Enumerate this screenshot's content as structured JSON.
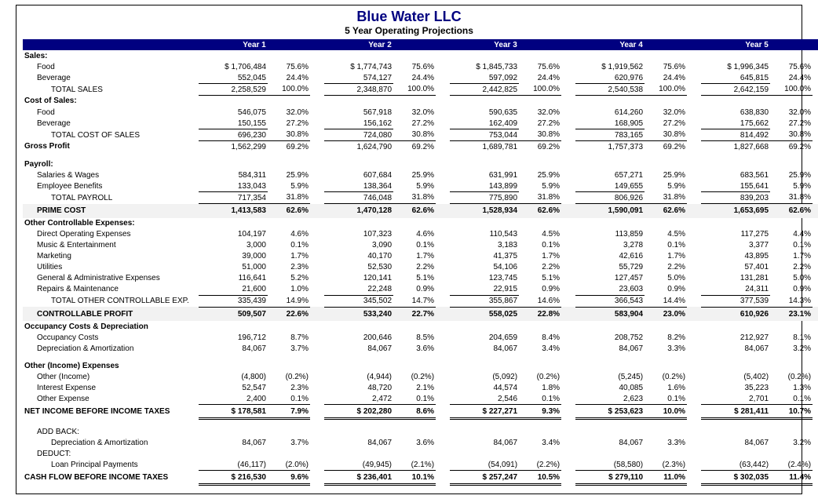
{
  "company": "Blue Water LLC",
  "report_title": "5 Year Operating Projections",
  "year_headers": [
    "Year 1",
    "Year 2",
    "Year 3",
    "Year 4",
    "Year 5"
  ],
  "colors": {
    "header_bg": "#000080",
    "header_fg": "#ffffff",
    "shade_bg": "#f2f2f2"
  },
  "rows": [
    {
      "type": "section",
      "label": "Sales:"
    },
    {
      "type": "line",
      "indent": 1,
      "label": "Food",
      "vals": [
        "$  1,706,484",
        "$  1,774,743",
        "$  1,845,733",
        "$  1,919,562",
        "$  1,996,345"
      ],
      "pcts": [
        "75.6%",
        "75.6%",
        "75.6%",
        "75.6%",
        "75.6%"
      ]
    },
    {
      "type": "line",
      "indent": 1,
      "label": "Beverage",
      "vals": [
        "552,045",
        "574,127",
        "597,092",
        "620,976",
        "645,815"
      ],
      "pcts": [
        "24.4%",
        "24.4%",
        "24.4%",
        "24.4%",
        "24.4%"
      ],
      "underline": "vals"
    },
    {
      "type": "line",
      "indent": 2,
      "label": "TOTAL SALES",
      "vals": [
        "2,258,529",
        "2,348,870",
        "2,442,825",
        "2,540,538",
        "2,642,159"
      ],
      "pcts": [
        "100.0%",
        "100.0%",
        "100.0%",
        "100.0%",
        "100.0%"
      ],
      "topline": true,
      "underline": "both"
    },
    {
      "type": "section",
      "label": "Cost of Sales:"
    },
    {
      "type": "line",
      "indent": 1,
      "label": "Food",
      "vals": [
        "546,075",
        "567,918",
        "590,635",
        "614,260",
        "638,830"
      ],
      "pcts": [
        "32.0%",
        "32.0%",
        "32.0%",
        "32.0%",
        "32.0%"
      ]
    },
    {
      "type": "line",
      "indent": 1,
      "label": "Beverage",
      "vals": [
        "150,155",
        "156,162",
        "162,409",
        "168,905",
        "175,662"
      ],
      "pcts": [
        "27.2%",
        "27.2%",
        "27.2%",
        "27.2%",
        "27.2%"
      ],
      "underline": "vals"
    },
    {
      "type": "line",
      "indent": 2,
      "label": "TOTAL COST OF SALES",
      "vals": [
        "696,230",
        "724,080",
        "753,044",
        "783,165",
        "814,492"
      ],
      "pcts": [
        "30.8%",
        "30.8%",
        "30.8%",
        "30.8%",
        "30.8%"
      ],
      "topline": true,
      "underline": "both"
    },
    {
      "type": "section-with-vals",
      "label": "Gross Profit",
      "vals": [
        "1,562,299",
        "1,624,790",
        "1,689,781",
        "1,757,373",
        "1,827,668"
      ],
      "pcts": [
        "69.2%",
        "69.2%",
        "69.2%",
        "69.2%",
        "69.2%"
      ]
    },
    {
      "type": "spacer"
    },
    {
      "type": "section",
      "label": "Payroll:"
    },
    {
      "type": "line",
      "indent": 1,
      "label": "Salaries & Wages",
      "vals": [
        "584,311",
        "607,684",
        "631,991",
        "657,271",
        "683,561"
      ],
      "pcts": [
        "25.9%",
        "25.9%",
        "25.9%",
        "25.9%",
        "25.9%"
      ]
    },
    {
      "type": "line",
      "indent": 1,
      "label": "Employee Benefits",
      "vals": [
        "133,043",
        "138,364",
        "143,899",
        "149,655",
        "155,641"
      ],
      "pcts": [
        "5.9%",
        "5.9%",
        "5.9%",
        "5.9%",
        "5.9%"
      ],
      "underline": "vals"
    },
    {
      "type": "line",
      "indent": 2,
      "label": "TOTAL PAYROLL",
      "vals": [
        "717,354",
        "746,048",
        "775,890",
        "806,926",
        "839,203"
      ],
      "pcts": [
        "31.8%",
        "31.8%",
        "31.8%",
        "31.8%",
        "31.8%"
      ],
      "topline": true,
      "underline": "both"
    },
    {
      "type": "major",
      "indent": 1,
      "label": "PRIME COST",
      "shade": true,
      "vals": [
        "1,413,583",
        "1,470,128",
        "1,528,934",
        "1,590,091",
        "1,653,695"
      ],
      "pcts": [
        "62.6%",
        "62.6%",
        "62.6%",
        "62.6%",
        "62.6%"
      ]
    },
    {
      "type": "section",
      "label": "Other Controllable Expenses:"
    },
    {
      "type": "line",
      "indent": 1,
      "label": "Direct Operating Expenses",
      "vals": [
        "104,197",
        "107,323",
        "110,543",
        "113,859",
        "117,275"
      ],
      "pcts": [
        "4.6%",
        "4.6%",
        "4.5%",
        "4.5%",
        "4.4%"
      ]
    },
    {
      "type": "line",
      "indent": 1,
      "label": "Music & Entertainment",
      "vals": [
        "3,000",
        "3,090",
        "3,183",
        "3,278",
        "3,377"
      ],
      "pcts": [
        "0.1%",
        "0.1%",
        "0.1%",
        "0.1%",
        "0.1%"
      ]
    },
    {
      "type": "line",
      "indent": 1,
      "label": "Marketing",
      "vals": [
        "39,000",
        "40,170",
        "41,375",
        "42,616",
        "43,895"
      ],
      "pcts": [
        "1.7%",
        "1.7%",
        "1.7%",
        "1.7%",
        "1.7%"
      ]
    },
    {
      "type": "line",
      "indent": 1,
      "label": "Utilities",
      "vals": [
        "51,000",
        "52,530",
        "54,106",
        "55,729",
        "57,401"
      ],
      "pcts": [
        "2.3%",
        "2.2%",
        "2.2%",
        "2.2%",
        "2.2%"
      ]
    },
    {
      "type": "line",
      "indent": 1,
      "label": "General & Administrative Expenses",
      "vals": [
        "116,641",
        "120,141",
        "123,745",
        "127,457",
        "131,281"
      ],
      "pcts": [
        "5.2%",
        "5.1%",
        "5.1%",
        "5.0%",
        "5.0%"
      ]
    },
    {
      "type": "line",
      "indent": 1,
      "label": "Repairs & Maintenance",
      "vals": [
        "21,600",
        "22,248",
        "22,915",
        "23,603",
        "24,311"
      ],
      "pcts": [
        "1.0%",
        "0.9%",
        "0.9%",
        "0.9%",
        "0.9%"
      ],
      "underline": "vals"
    },
    {
      "type": "line",
      "indent": 2,
      "label": "TOTAL OTHER CONTROLLABLE EXP.",
      "vals": [
        "335,439",
        "345,502",
        "355,867",
        "366,543",
        "377,539"
      ],
      "pcts": [
        "14.9%",
        "14.7%",
        "14.6%",
        "14.4%",
        "14.3%"
      ],
      "topline": true,
      "underline": "both"
    },
    {
      "type": "major",
      "indent": 1,
      "label": "CONTROLLABLE PROFIT",
      "shade": true,
      "vals": [
        "509,507",
        "533,240",
        "558,025",
        "583,904",
        "610,926"
      ],
      "pcts": [
        "22.6%",
        "22.7%",
        "22.8%",
        "23.0%",
        "23.1%"
      ]
    },
    {
      "type": "section",
      "label": "Occupancy Costs & Depreciation"
    },
    {
      "type": "line",
      "indent": 1,
      "label": "Occupancy Costs",
      "vals": [
        "196,712",
        "200,646",
        "204,659",
        "208,752",
        "212,927"
      ],
      "pcts": [
        "8.7%",
        "8.5%",
        "8.4%",
        "8.2%",
        "8.1%"
      ]
    },
    {
      "type": "line",
      "indent": 1,
      "label": "Depreciation & Amortization",
      "vals": [
        "84,067",
        "84,067",
        "84,067",
        "84,067",
        "84,067"
      ],
      "pcts": [
        "3.7%",
        "3.6%",
        "3.4%",
        "3.3%",
        "3.2%"
      ]
    },
    {
      "type": "spacer"
    },
    {
      "type": "section",
      "label": "Other (Income) Expenses"
    },
    {
      "type": "line",
      "indent": 1,
      "label": "Other (Income)",
      "vals": [
        "(4,800)",
        "(4,944)",
        "(5,092)",
        "(5,245)",
        "(5,402)"
      ],
      "pcts": [
        "(0.2%)",
        "(0.2%)",
        "(0.2%)",
        "(0.2%)",
        "(0.2%)"
      ]
    },
    {
      "type": "line",
      "indent": 1,
      "label": "Interest Expense",
      "vals": [
        "52,547",
        "48,720",
        "44,574",
        "40,085",
        "35,223"
      ],
      "pcts": [
        "2.3%",
        "2.1%",
        "1.8%",
        "1.6%",
        "1.3%"
      ]
    },
    {
      "type": "line",
      "indent": 1,
      "label": "Other Expense",
      "vals": [
        "2,400",
        "2,472",
        "2,546",
        "2,623",
        "2,701"
      ],
      "pcts": [
        "0.1%",
        "0.1%",
        "0.1%",
        "0.1%",
        "0.1%"
      ],
      "underline": "both"
    },
    {
      "type": "grand",
      "label": "NET INCOME BEFORE INCOME TAXES",
      "vals": [
        "$  178,581",
        "$  202,280",
        "$  227,271",
        "$  253,623",
        "$  281,411"
      ],
      "pcts": [
        "7.9%",
        "8.6%",
        "9.3%",
        "10.0%",
        "10.7%"
      ]
    },
    {
      "type": "spacer"
    },
    {
      "type": "line",
      "indent": 1,
      "label": "ADD BACK:"
    },
    {
      "type": "line",
      "indent": 2,
      "label": "Depreciation & Amortization",
      "vals": [
        "84,067",
        "84,067",
        "84,067",
        "84,067",
        "84,067"
      ],
      "pcts": [
        "3.7%",
        "3.6%",
        "3.4%",
        "3.3%",
        "3.2%"
      ]
    },
    {
      "type": "line",
      "indent": 1,
      "label": "DEDUCT:"
    },
    {
      "type": "line",
      "indent": 2,
      "label": "Loan Principal Payments",
      "vals": [
        "(46,117)",
        "(49,945)",
        "(54,091)",
        "(58,580)",
        "(63,442)"
      ],
      "pcts": [
        "(2.0%)",
        "(2.1%)",
        "(2.2%)",
        "(2.3%)",
        "(2.4%)"
      ],
      "underline": "both"
    },
    {
      "type": "grand",
      "label": "CASH FLOW BEFORE INCOME TAXES",
      "vals": [
        "$  216,530",
        "$  236,401",
        "$  257,247",
        "$  279,110",
        "$  302,035"
      ],
      "pcts": [
        "9.6%",
        "10.1%",
        "10.5%",
        "11.0%",
        "11.4%"
      ]
    }
  ]
}
